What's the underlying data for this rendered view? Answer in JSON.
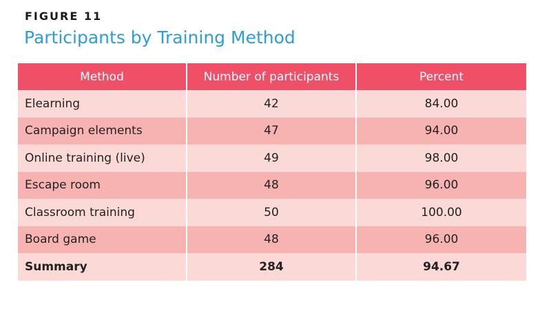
{
  "figure": {
    "label": "FIGURE 11",
    "title": "Participants by Training Method"
  },
  "colors": {
    "title": "#2b9fd6",
    "header_bg": "#ef5068",
    "row_light": "#fbd9d6",
    "row_dark": "#f6b3b2"
  },
  "chart_data": {
    "type": "table",
    "title": "Participants by Training Method",
    "columns": [
      "Method",
      "Number of participants",
      "Percent"
    ],
    "rows": [
      {
        "method": "Elearning",
        "participants": "42",
        "percent": "84.00"
      },
      {
        "method": "Campaign elements",
        "participants": "47",
        "percent": "94.00"
      },
      {
        "method": "Online training (live)",
        "participants": "49",
        "percent": "98.00"
      },
      {
        "method": "Escape room",
        "participants": "48",
        "percent": "96.00"
      },
      {
        "method": "Classroom training",
        "participants": "50",
        "percent": "100.00"
      },
      {
        "method": "Board game",
        "participants": "48",
        "percent": "96.00"
      }
    ],
    "summary": {
      "method": "Summary",
      "participants": "284",
      "percent": "94.67"
    }
  }
}
